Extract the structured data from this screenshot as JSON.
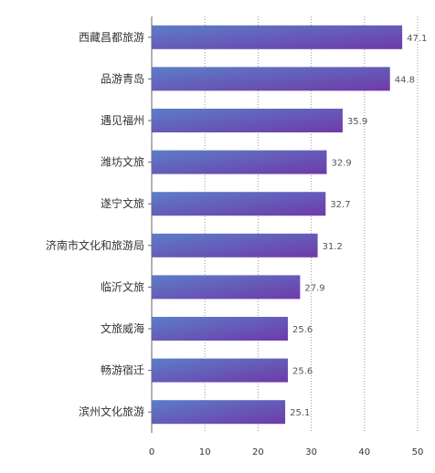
{
  "chart_data": {
    "type": "bar",
    "orientation": "horizontal",
    "categories": [
      "西藏昌都旅游",
      "品游青岛",
      "遇见福州",
      "潍坊文旅",
      "遂宁文旅",
      "济南市文化和旅游局",
      "临沂文旅",
      "文旅威海",
      "畅游宿迁",
      "滨州文化旅游"
    ],
    "values": [
      47.1,
      44.8,
      35.9,
      32.9,
      32.7,
      31.2,
      27.9,
      25.6,
      25.6,
      25.1
    ],
    "value_labels": [
      "47.1",
      "44.8",
      "35.9",
      "32.9",
      "32.7",
      "31.2",
      "27.9",
      "25.6",
      "25.6",
      "25.1"
    ],
    "xlim": [
      0,
      50
    ],
    "x_ticks": [
      "0",
      "10",
      "20",
      "30",
      "40",
      "50"
    ],
    "grid": "vertical dotted",
    "colors": {
      "bar_gradient_start": "#5b7ec9",
      "bar_gradient_end": "#6f3aa8",
      "grid": "#9a9a9a",
      "axis": "#666666",
      "text": "#333333",
      "value_text": "#555555"
    }
  }
}
